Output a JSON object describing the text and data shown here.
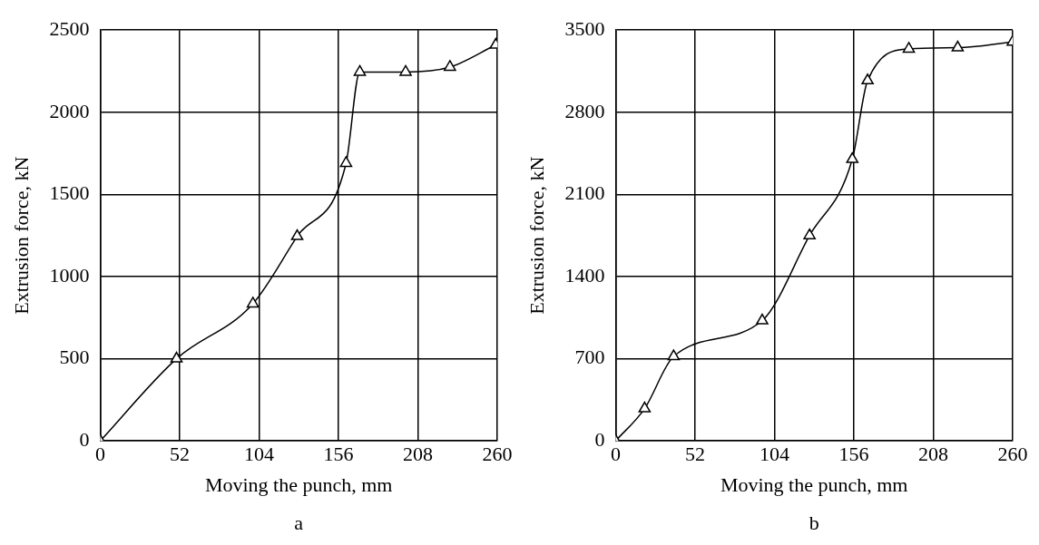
{
  "chart_data": [
    {
      "type": "line",
      "xlabel": "Moving the punch, mm",
      "ylabel": "Extrusion force, kN",
      "annotations": [
        "a"
      ],
      "xlim": [
        0,
        260
      ],
      "xticks": [
        0,
        52,
        104,
        156,
        208,
        260
      ],
      "ylim": [
        0,
        2500
      ],
      "yticks": [
        0,
        500,
        1000,
        1500,
        2000,
        2500
      ],
      "grid": true,
      "legend": false,
      "marker": "triangle",
      "line_style": "solid",
      "series": [
        {
          "color": "#000000",
          "x": [
            0,
            50,
            100,
            129,
            161,
            170,
            200,
            229,
            259
          ],
          "values": [
            0,
            500,
            835,
            1245,
            1690,
            2245,
            2245,
            2275,
            2410
          ]
        }
      ]
    },
    {
      "type": "line",
      "xlabel": "Moving the punch, mm",
      "ylabel": "Extrusion force, kN",
      "annotations": [
        "b"
      ],
      "xlim": [
        0,
        260
      ],
      "xticks": [
        0,
        52,
        104,
        156,
        208,
        260
      ],
      "ylim": [
        0,
        3500
      ],
      "yticks": [
        0,
        700,
        1400,
        2100,
        2800,
        3500
      ],
      "grid": true,
      "legend": false,
      "marker": "triangle",
      "line_style": "solid",
      "series": [
        {
          "color": "#000000",
          "x": [
            0,
            19,
            38,
            96,
            127,
            155,
            165,
            192,
            224,
            260
          ],
          "values": [
            0,
            275,
            720,
            1025,
            1750,
            2400,
            3070,
            3340,
            3350,
            3400
          ]
        }
      ]
    }
  ]
}
